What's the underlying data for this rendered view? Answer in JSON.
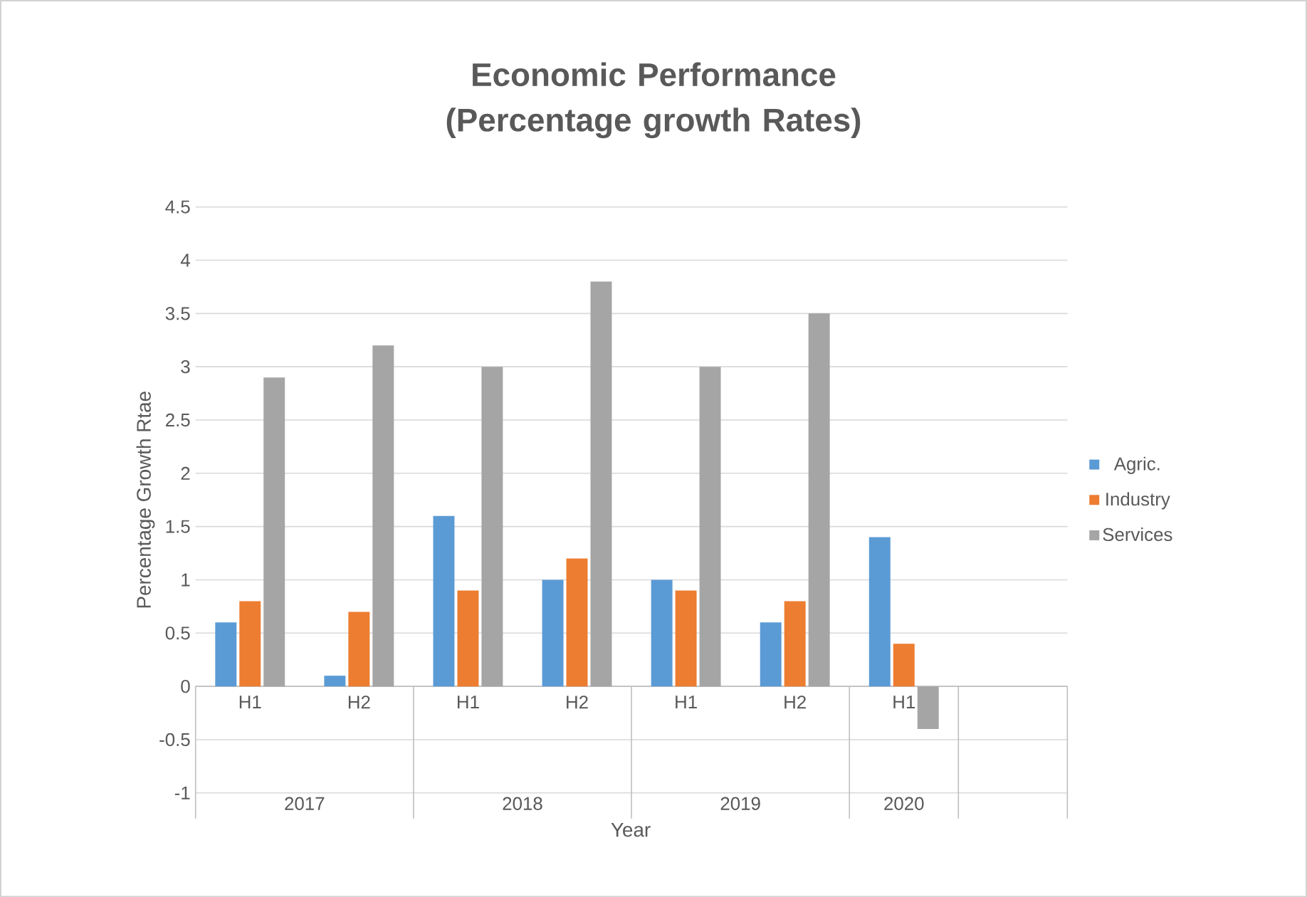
{
  "chart_data": {
    "type": "bar",
    "title": "Economic Performance (Percentage growth Rates)",
    "xlabel": "Year",
    "ylabel": "Percentage Growth Rtae",
    "categories": [
      "H1",
      "H2",
      "H1",
      "H2",
      "H1",
      "H2",
      "H1"
    ],
    "annotations": [
      "2017",
      "2018",
      "2019",
      "2020"
    ],
    "series": [
      {
        "name": "Agric.",
        "color": "#5b9bd5",
        "values": [
          0.6,
          0.1,
          1.6,
          1.0,
          1.0,
          0.6,
          1.4
        ]
      },
      {
        "name": "Industry",
        "color": "#ed7d31",
        "values": [
          0.8,
          0.7,
          0.9,
          1.2,
          0.9,
          0.8,
          0.4
        ]
      },
      {
        "name": "Services",
        "color": "#a5a5a5",
        "values": [
          2.9,
          3.2,
          3.0,
          3.8,
          3.0,
          3.5,
          -0.4
        ]
      }
    ],
    "ylim": [
      -1,
      4.5
    ],
    "yticks": [
      -1,
      -0.5,
      0,
      0.5,
      1,
      1.5,
      2,
      2.5,
      3,
      3.5,
      4,
      4.5
    ],
    "grid": "y",
    "legend": "right"
  }
}
